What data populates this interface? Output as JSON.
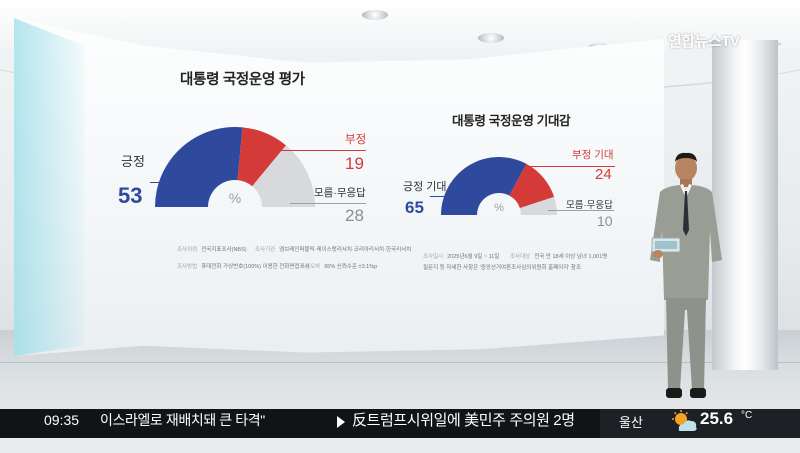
{
  "broadcast": {
    "logo": "연합뉴스TV"
  },
  "chart_left": {
    "title": "대통령 국정운영 평가",
    "center_symbol": "%",
    "positive": {
      "label": "긍정",
      "value": "53"
    },
    "negative": {
      "label": "부정",
      "value": "19"
    },
    "unknown": {
      "label": "모름·무응답",
      "value": "28"
    }
  },
  "chart_right": {
    "title": "대통령 국정운영 기대감",
    "center_symbol": "%",
    "positive": {
      "label": "긍정 기대",
      "value": "65"
    },
    "negative": {
      "label": "부정 기대",
      "value": "24"
    },
    "unknown": {
      "label": "모름·무응답",
      "value": "10"
    }
  },
  "chart_data": [
    {
      "type": "pie",
      "title": "대통령 국정운영 평가",
      "categories": [
        "긍정",
        "부정",
        "모름·무응답"
      ],
      "values": [
        53,
        19,
        28
      ],
      "colors": [
        "#2f4a9c",
        "#d33a38",
        "#d7d9dd"
      ]
    },
    {
      "type": "pie",
      "title": "대통령 국정운영 기대감",
      "categories": [
        "긍정 기대",
        "부정 기대",
        "모름·무응답"
      ],
      "values": [
        65,
        24,
        10
      ],
      "colors": [
        "#2f4a9c",
        "#d33a38",
        "#d7d9dd"
      ]
    }
  ],
  "survey_info": {
    "client_label": "조사의뢰",
    "client_value": "전국지표조사(NBS)",
    "agency_label": "조사기관",
    "agency_value": "엠브레인퍼블릭·케이스탯리서치·코리아리서치·한국리서치",
    "period_label": "조사일시",
    "period_value": "2025년6월 9일 ~ 11일",
    "target_label": "조사대상",
    "target_value": "전국 만 18세 이상 남녀 1,001명",
    "method_label": "조사방법",
    "method_value": "휴대전화 가상번호(100%) 이용한 전화면접조사",
    "margin_label": "표본오차",
    "margin_value": "95% 신뢰수준 ±3.1%p",
    "note": "질문지 등 자세한 사항은 '중앙선거여론조사심의위원회 홈페이지' 참조"
  },
  "ticker": {
    "time": "09:35",
    "headline_prev": "이스라엘로 재배치돼 큰 타격\"",
    "headline_current": "反트럼프시위일에 美민주 주의원 2명",
    "city": "울산",
    "temperature": "25.6",
    "temperature_unit": "°C",
    "weather_icon": "partly-cloudy-icon"
  },
  "colors": {
    "positive": "#2f4a9c",
    "negative": "#d33a38",
    "unknown": "#d7d9dd",
    "ticker_bg": "#111417"
  }
}
